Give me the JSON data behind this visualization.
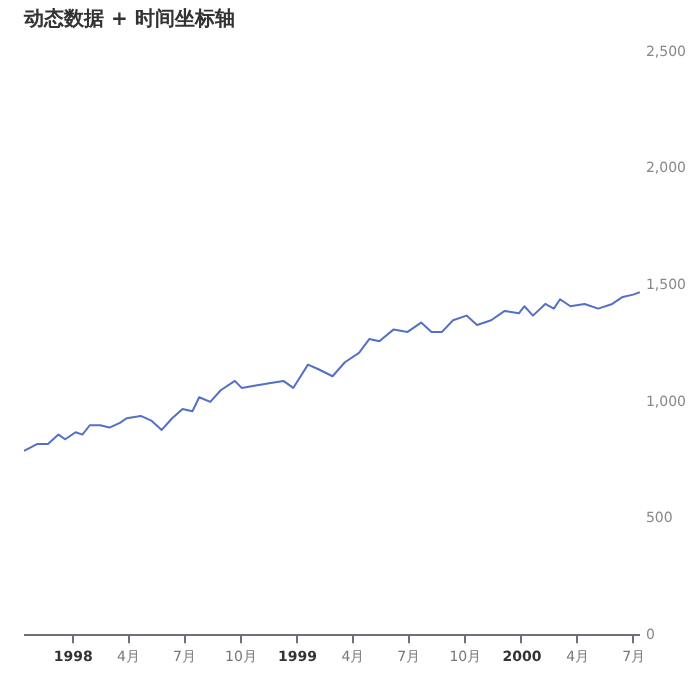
{
  "chart_data": {
    "type": "line",
    "title": "动态数据 + 时间坐标轴",
    "x": [
      "1997-10-13",
      "1997-11-04",
      "1997-11-21",
      "1997-12-08",
      "1997-12-19",
      "1998-01-05",
      "1998-01-16",
      "1998-01-28",
      "1998-02-14",
      "1998-03-01",
      "1998-03-18",
      "1998-03-29",
      "1998-04-21",
      "1998-05-08",
      "1998-05-25",
      "1998-06-11",
      "1998-06-28",
      "1998-07-14",
      "1998-07-25",
      "1998-08-12",
      "1998-08-29",
      "1998-09-21",
      "1998-10-02",
      "1998-10-25",
      "1998-11-16",
      "1998-12-09",
      "1998-12-25",
      "1999-01-18",
      "1999-02-04",
      "1999-02-27",
      "1999-03-19",
      "1999-04-11",
      "1999-04-28",
      "1999-05-14",
      "1999-06-06",
      "1999-06-29",
      "1999-07-21",
      "1999-08-07",
      "1999-08-24",
      "1999-09-11",
      "1999-10-03",
      "1999-10-20",
      "1999-11-12",
      "1999-12-04",
      "1999-12-27",
      "2000-01-05",
      "2000-01-19",
      "2000-02-08",
      "2000-02-22",
      "2000-03-03",
      "2000-03-20",
      "2000-04-12",
      "2000-05-04",
      "2000-05-27",
      "2000-06-13",
      "2000-06-30",
      "2000-07-11"
    ],
    "series": [
      {
        "color": "#5470c6",
        "values": [
          790,
          820,
          820,
          860,
          840,
          870,
          860,
          900,
          900,
          890,
          910,
          930,
          940,
          920,
          880,
          930,
          970,
          960,
          1020,
          1000,
          1050,
          1090,
          1060,
          1070,
          1080,
          1090,
          1060,
          1160,
          1140,
          1110,
          1170,
          1210,
          1270,
          1260,
          1310,
          1300,
          1340,
          1300,
          1300,
          1350,
          1370,
          1330,
          1350,
          1390,
          1380,
          1410,
          1370,
          1420,
          1400,
          1440,
          1410,
          1420,
          1400,
          1420,
          1450,
          1460,
          1470
        ]
      }
    ],
    "xlim": [
      "1997-10-13",
      "2000-07-11"
    ],
    "xticks": [
      {
        "value": "1998-01-01",
        "label": "1998"
      },
      {
        "value": "1998-04-01",
        "label": "4月"
      },
      {
        "value": "1998-07-01",
        "label": "7月"
      },
      {
        "value": "1998-10-01",
        "label": "10月"
      },
      {
        "value": "1999-01-01",
        "label": "1999"
      },
      {
        "value": "1999-04-01",
        "label": "4月"
      },
      {
        "value": "1999-07-01",
        "label": "7月"
      },
      {
        "value": "1999-10-01",
        "label": "10月"
      },
      {
        "value": "2000-01-01",
        "label": "2000"
      },
      {
        "value": "2000-04-01",
        "label": "4月"
      },
      {
        "value": "2000-07-01",
        "label": "7月"
      }
    ],
    "ylim": [
      0,
      2500
    ],
    "yticks": [
      0,
      500,
      {
        "value": 1000,
        "label": "1,000"
      },
      {
        "value": 1500,
        "label": "1,500"
      },
      {
        "value": 2000,
        "label": "2,000"
      },
      {
        "value": 2500,
        "label": "2,500"
      }
    ],
    "grid": false,
    "legend": false,
    "marker": "none",
    "line_style": "solid"
  }
}
